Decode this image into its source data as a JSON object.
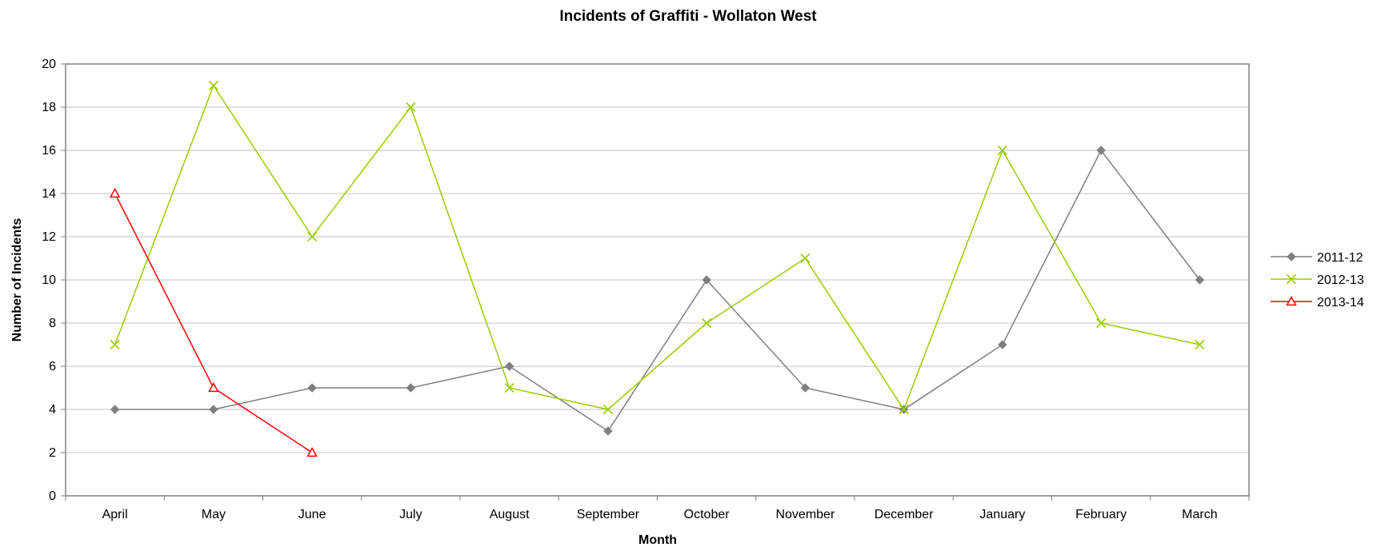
{
  "chart_data": {
    "type": "line",
    "title": "Incidents of Graffiti - Wollaton West",
    "xlabel": "Month",
    "ylabel": "Number of Incidents",
    "categories": [
      "April",
      "May",
      "June",
      "July",
      "August",
      "September",
      "October",
      "November",
      "December",
      "January",
      "February",
      "March"
    ],
    "ylim": [
      0,
      20
    ],
    "yticks": [
      0,
      2,
      4,
      6,
      8,
      10,
      12,
      14,
      16,
      18,
      20
    ],
    "grid": true,
    "legend_position": "right",
    "series": [
      {
        "name": "2011-12",
        "color": "#7f7f7f",
        "marker": "diamond",
        "values": [
          4,
          4,
          5,
          5,
          6,
          3,
          10,
          5,
          4,
          7,
          16,
          10
        ]
      },
      {
        "name": "2012-13",
        "color": "#99cc00",
        "marker": "x",
        "values": [
          7,
          19,
          12,
          18,
          5,
          4,
          8,
          11,
          4,
          16,
          8,
          7
        ]
      },
      {
        "name": "2013-14",
        "color": "#ff0000",
        "marker": "triangle",
        "values": [
          14,
          5,
          2,
          null,
          null,
          null,
          null,
          null,
          null,
          null,
          null,
          null
        ]
      }
    ]
  }
}
